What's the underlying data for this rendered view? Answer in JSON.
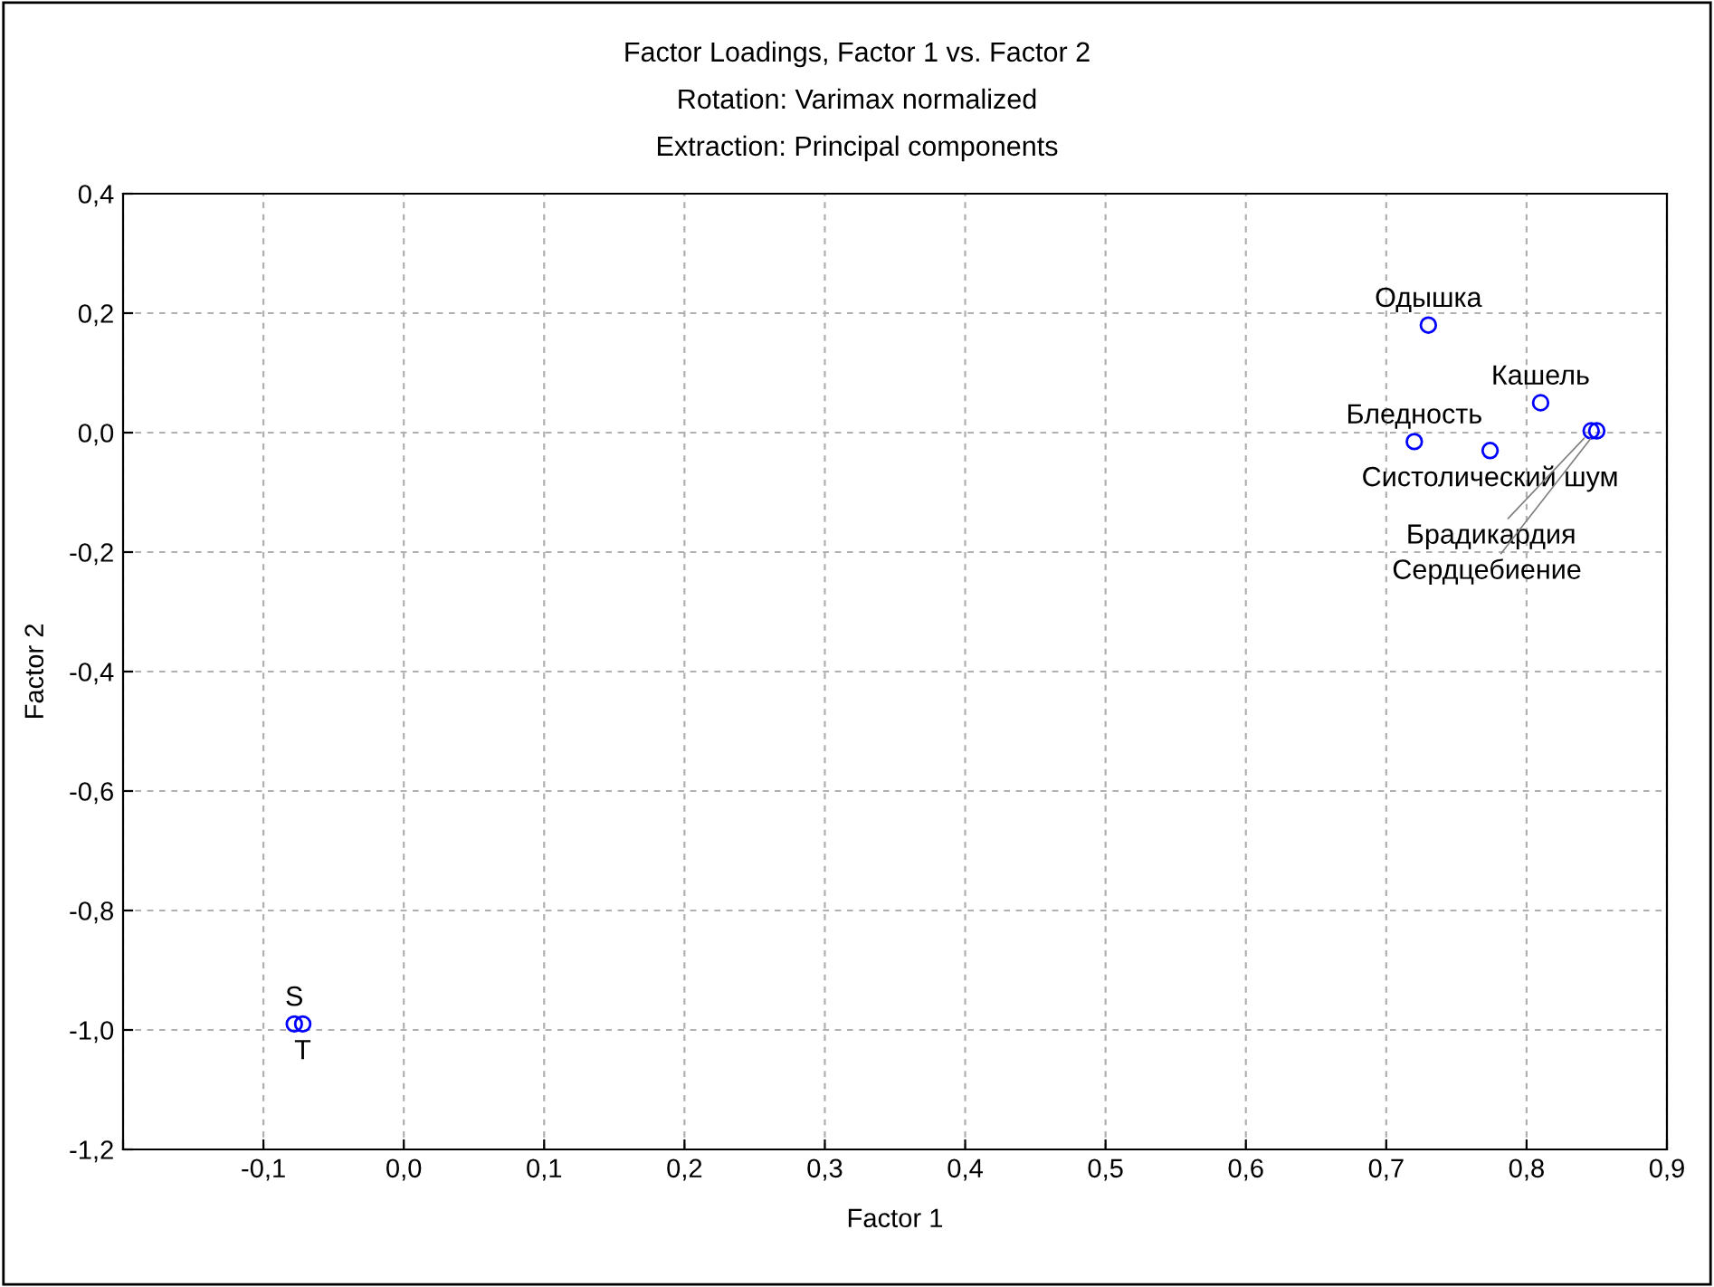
{
  "chart_data": {
    "type": "scatter",
    "title": "Factor Loadings, Factor 1 vs. Factor 2",
    "subtitle": "Rotation: Varimax normalized",
    "annotations": [
      "Extraction: Principal components"
    ],
    "xlabel": "Factor 1",
    "ylabel": "Factor 2",
    "x": [
      0.73,
      0.81,
      0.72,
      0.774,
      0.846,
      0.85,
      -0.078,
      -0.072
    ],
    "values": [
      0.18,
      0.05,
      -0.015,
      -0.03,
      0.003,
      0.003,
      -0.99,
      -0.99
    ],
    "value_labels": [
      "Одышка",
      "Кашель",
      "Бледность",
      "Систолический шум",
      "Брадикардия",
      "Сердцебиение",
      "S",
      "T"
    ],
    "color": "#0000ff",
    "marker": "circle",
    "grid": true,
    "xlim": [
      -0.2,
      0.9
    ],
    "xticks": [
      {
        "value": -0.2,
        "label": null
      },
      {
        "value": -0.1,
        "label": "-0,1"
      },
      {
        "value": 0.0,
        "label": "0,0"
      },
      {
        "value": 0.1,
        "label": "0,1"
      },
      {
        "value": 0.2,
        "label": "0,2"
      },
      {
        "value": 0.3,
        "label": "0,3"
      },
      {
        "value": 0.4,
        "label": "0,4"
      },
      {
        "value": 0.5,
        "label": "0,5"
      },
      {
        "value": 0.6,
        "label": "0,6"
      },
      {
        "value": 0.7,
        "label": "0,7"
      },
      {
        "value": 0.8,
        "label": "0,8"
      },
      {
        "value": 0.9,
        "label": "0,9"
      }
    ],
    "ylim": [
      -1.2,
      0.4
    ],
    "yticks": [
      {
        "value": -1.2,
        "label": "-1,2"
      },
      {
        "value": -1.0,
        "label": "-1,0"
      },
      {
        "value": -0.8,
        "label": "-0,8"
      },
      {
        "value": -0.6,
        "label": "-0,6"
      },
      {
        "value": -0.4,
        "label": "-0,4"
      },
      {
        "value": -0.2,
        "label": "-0,2"
      },
      {
        "value": 0.0,
        "label": "0,0"
      },
      {
        "value": 0.2,
        "label": "0,2"
      },
      {
        "value": 0.4,
        "label": "0,4"
      }
    ]
  }
}
